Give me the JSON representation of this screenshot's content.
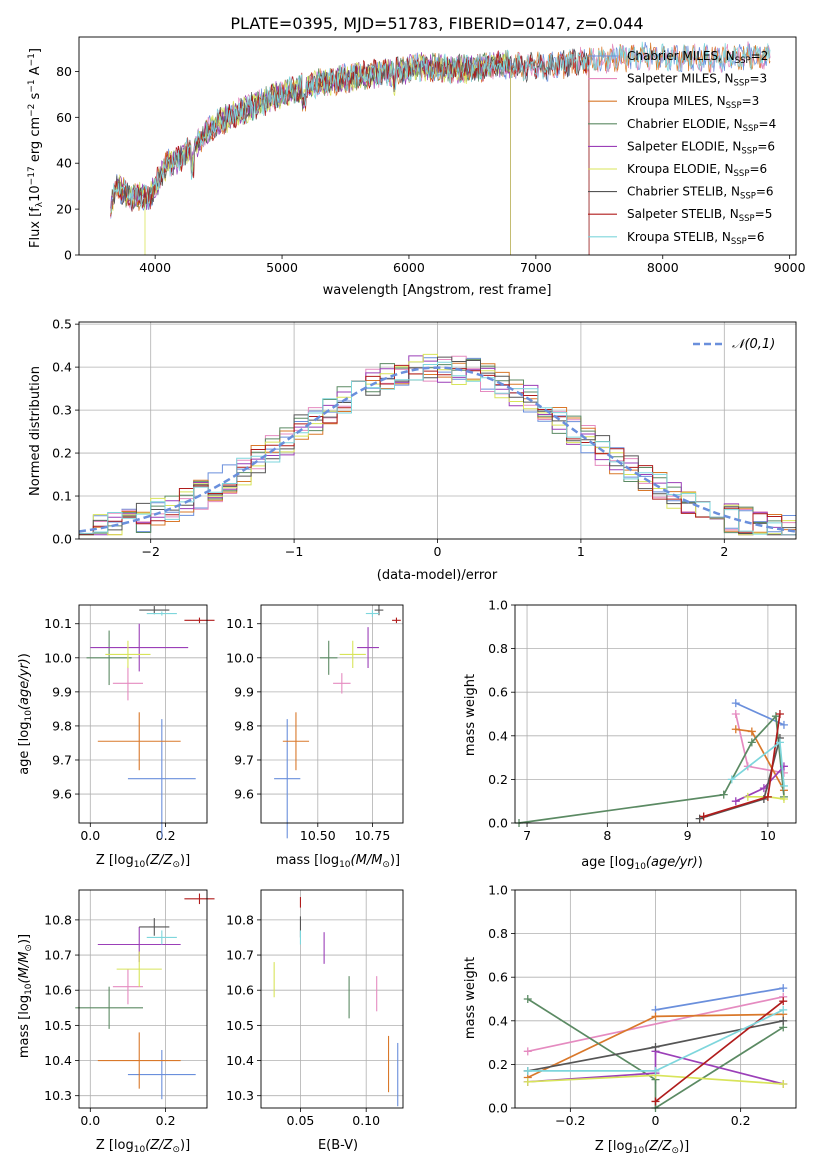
{
  "figure_title": "PLATE=0395, MJD=51783, FIBERID=0147, z=0.044",
  "colors": {
    "Chabrier MILES": "#6a8fdc",
    "Salpeter MILES": "#e58bc0",
    "Kroupa MILES": "#d9782a",
    "Chabrier ELODIE": "#5b8a63",
    "Salpeter ELODIE": "#9b3fb8",
    "Kroupa ELODIE": "#d8e45a",
    "Chabrier STELIB": "#555555",
    "Salpeter STELIB": "#b01c1c",
    "Kroupa STELIB": "#7ed6dc"
  },
  "chart_data": [
    {
      "id": "spectrum",
      "type": "line",
      "title": "PLATE=0395, MJD=51783, FIBERID=0147, z=0.044",
      "xlabel": "wavelength [Angstrom, rest frame]",
      "ylabel": "Flux [f",
      "ylabel_full": "Flux [f_λ 10^-17 erg cm^-2 s^-1 A^-1]",
      "xlim": [
        3400,
        9050
      ],
      "ylim": [
        0,
        95
      ],
      "xticks": [
        4000,
        5000,
        6000,
        7000,
        8000,
        9000
      ],
      "yticks": [
        0,
        20,
        40,
        60,
        80
      ],
      "legend_position": "right",
      "series": [
        {
          "name": "Chabrier MILES, N",
          "nssp": "=2",
          "color_key": "Chabrier MILES",
          "cut_at": 9000
        },
        {
          "name": "Salpeter MILES, N",
          "nssp": "=3",
          "color_key": "Salpeter MILES",
          "cut_at": 9000
        },
        {
          "name": "Kroupa MILES, N",
          "nssp": "=3",
          "color_key": "Kroupa MILES",
          "cut_at": 9000
        },
        {
          "name": "Chabrier ELODIE, N",
          "nssp": "=4",
          "color_key": "Chabrier ELODIE",
          "cut_at": 6800
        },
        {
          "name": "Salpeter ELODIE, N",
          "nssp": "=6",
          "color_key": "Salpeter ELODIE",
          "cut_at": 6800
        },
        {
          "name": "Kroupa ELODIE, N",
          "nssp": "=6",
          "color_key": "Kroupa ELODIE",
          "cut_at": 6800
        },
        {
          "name": "Chabrier STELIB, N",
          "nssp": "=6",
          "color_key": "Chabrier STELIB",
          "cut_at": 7420
        },
        {
          "name": "Salpeter STELIB, N",
          "nssp": "=5",
          "color_key": "Salpeter STELIB",
          "cut_at": 7420
        },
        {
          "name": "Kroupa STELIB, N",
          "nssp": "=6",
          "color_key": "Kroupa STELIB",
          "cut_at": 8850
        }
      ],
      "spectrum_shape": {
        "x": [
          3650,
          3700,
          3800,
          3900,
          3950,
          4000,
          4100,
          4200,
          4300,
          4400,
          4500,
          4700,
          4900,
          5100,
          5300,
          5500,
          5700,
          5900,
          6100,
          6300,
          6500,
          6700,
          6900,
          7100,
          7300,
          7500,
          7700,
          7900,
          8100,
          8300,
          8500,
          8700,
          8850
        ],
        "y": [
          20,
          30,
          25,
          26,
          24,
          30,
          40,
          42,
          47,
          53,
          58,
          63,
          68,
          72,
          75,
          77,
          79,
          80,
          82,
          81,
          81,
          83,
          82,
          82,
          84,
          85,
          86,
          87,
          86,
          86,
          86,
          87,
          86
        ]
      }
    },
    {
      "id": "residuals",
      "type": "histogram",
      "xlabel": "(data-model)/error",
      "ylabel": "Normed distribution",
      "xlim": [
        -2.5,
        2.5
      ],
      "ylim": [
        0,
        0.505
      ],
      "xticks": [
        -2,
        -1,
        0,
        1,
        2
      ],
      "yticks": [
        0.0,
        0.1,
        0.2,
        0.3,
        0.4,
        0.5
      ],
      "reference_curve": {
        "name": "𝒩(0,1)",
        "sigma": 1,
        "color": "#6a8fdc",
        "style": "dashed"
      },
      "bin_width": 0.1,
      "grid": true,
      "legend_position": "top-right"
    },
    {
      "id": "age_vs_Z",
      "type": "scatter",
      "xlabel": "Z [log",
      "ylabel": "age  [log",
      "xlim": [
        -0.03,
        0.31
      ],
      "ylim": [
        9.515,
        10.155
      ],
      "xticks": [
        0.0,
        0.2
      ],
      "yticks": [
        9.6,
        9.7,
        9.8,
        9.9,
        10.0,
        10.1
      ],
      "points": [
        {
          "key": "Chabrier MILES",
          "x": 0.19,
          "xerr": 0.09,
          "y": 9.645,
          "yerr": 0.175
        },
        {
          "key": "Kroupa MILES",
          "x": 0.13,
          "xerr": 0.11,
          "y": 9.755,
          "yerr": 0.085
        },
        {
          "key": "Salpeter MILES",
          "x": 0.1,
          "xerr": 0.04,
          "y": 9.925,
          "yerr": 0.05
        },
        {
          "key": "Chabrier ELODIE",
          "x": 0.05,
          "xerr": 0.06,
          "y": 10.0,
          "yerr": 0.08
        },
        {
          "key": "Salpeter ELODIE",
          "x": 0.13,
          "xerr": 0.13,
          "y": 10.03,
          "yerr": 0.07
        },
        {
          "key": "Kroupa ELODIE",
          "x": 0.1,
          "xerr": 0.06,
          "y": 10.01,
          "yerr": 0.04
        },
        {
          "key": "Chabrier STELIB",
          "x": 0.17,
          "xerr": 0.04,
          "y": 10.14,
          "yerr": 0.012
        },
        {
          "key": "Kroupa STELIB",
          "x": 0.19,
          "xerr": 0.04,
          "y": 10.13,
          "yerr": 0.006
        },
        {
          "key": "Salpeter STELIB",
          "x": 0.29,
          "xerr": 0.04,
          "y": 10.11,
          "yerr": 0.008
        }
      ]
    },
    {
      "id": "age_vs_mass",
      "type": "scatter",
      "xlabel": "mass [log",
      "xlim": [
        10.24,
        10.89
      ],
      "ylim": [
        9.515,
        10.155
      ],
      "xticks": [
        10.5,
        10.75
      ],
      "yticks": [
        9.6,
        9.7,
        9.8,
        9.9,
        10.0,
        10.1
      ],
      "points": [
        {
          "key": "Chabrier MILES",
          "x": 10.36,
          "xerr": 0.06,
          "y": 9.645,
          "yerr": 0.175
        },
        {
          "key": "Kroupa MILES",
          "x": 10.4,
          "xerr": 0.06,
          "y": 9.755,
          "yerr": 0.085
        },
        {
          "key": "Salpeter MILES",
          "x": 10.61,
          "xerr": 0.04,
          "y": 9.925,
          "yerr": 0.03
        },
        {
          "key": "Chabrier ELODIE",
          "x": 10.55,
          "xerr": 0.04,
          "y": 10.0,
          "yerr": 0.05
        },
        {
          "key": "Salpeter ELODIE",
          "x": 10.73,
          "xerr": 0.05,
          "y": 10.03,
          "yerr": 0.06
        },
        {
          "key": "Kroupa ELODIE",
          "x": 10.66,
          "xerr": 0.06,
          "y": 10.01,
          "yerr": 0.04
        },
        {
          "key": "Chabrier STELIB",
          "x": 10.78,
          "xerr": 0.02,
          "y": 10.14,
          "yerr": 0.015
        },
        {
          "key": "Kroupa STELIB",
          "x": 10.75,
          "xerr": 0.03,
          "y": 10.13,
          "yerr": 0.01
        },
        {
          "key": "Salpeter STELIB",
          "x": 10.86,
          "xerr": 0.02,
          "y": 10.11,
          "yerr": 0.008
        }
      ]
    },
    {
      "id": "massweight_vs_age",
      "type": "line",
      "xlabel": "age  [log",
      "ylabel": "mass weight",
      "xlim": [
        6.85,
        10.35
      ],
      "ylim": [
        0,
        1.0
      ],
      "xticks": [
        7,
        8,
        9,
        10
      ],
      "yticks": [
        0.0,
        0.2,
        0.4,
        0.6,
        0.8,
        1.0
      ],
      "series": [
        {
          "key": "Chabrier MILES",
          "x": [
            9.6,
            10.2
          ],
          "y": [
            0.55,
            0.45
          ]
        },
        {
          "key": "Salpeter MILES",
          "x": [
            9.6,
            9.75,
            10.2
          ],
          "y": [
            0.5,
            0.26,
            0.23
          ]
        },
        {
          "key": "Kroupa MILES",
          "x": [
            9.6,
            9.8,
            10.2
          ],
          "y": [
            0.43,
            0.42,
            0.15
          ]
        },
        {
          "key": "Chabrier ELODIE",
          "x": [
            6.9,
            9.45,
            9.8,
            10.1,
            10.2
          ],
          "y": [
            0.0,
            0.13,
            0.37,
            0.49,
            0.12
          ]
        },
        {
          "key": "Salpeter ELODIE",
          "x": [
            9.6,
            9.95,
            10.2
          ],
          "y": [
            0.1,
            0.16,
            0.26
          ]
        },
        {
          "key": "Kroupa ELODIE",
          "x": [
            9.75,
            10.0,
            10.2
          ],
          "y": [
            0.12,
            0.12,
            0.11
          ]
        },
        {
          "key": "Chabrier STELIB",
          "x": [
            9.15,
            9.95,
            10.15
          ],
          "y": [
            0.02,
            0.11,
            0.39
          ]
        },
        {
          "key": "Salpeter STELIB",
          "x": [
            9.2,
            10.0,
            10.15
          ],
          "y": [
            0.03,
            0.12,
            0.5
          ]
        },
        {
          "key": "Kroupa STELIB",
          "x": [
            9.55,
            10.15,
            10.2
          ],
          "y": [
            0.2,
            0.37,
            0.17
          ]
        }
      ]
    },
    {
      "id": "mass_vs_Z",
      "type": "scatter",
      "xlabel": "Z [log",
      "ylabel": "mass [log",
      "xlim": [
        -0.03,
        0.31
      ],
      "ylim": [
        10.265,
        10.885
      ],
      "xticks": [
        0.0,
        0.2
      ],
      "yticks": [
        10.3,
        10.4,
        10.5,
        10.6,
        10.7,
        10.8
      ],
      "points": [
        {
          "key": "Chabrier MILES",
          "x": 0.19,
          "xerr": 0.09,
          "y": 10.36,
          "yerr": 0.07
        },
        {
          "key": "Kroupa MILES",
          "x": 0.13,
          "xerr": 0.11,
          "y": 10.4,
          "yerr": 0.08
        },
        {
          "key": "Salpeter MILES",
          "x": 0.1,
          "xerr": 0.04,
          "y": 10.61,
          "yerr": 0.05
        },
        {
          "key": "Chabrier ELODIE",
          "x": 0.05,
          "xerr": 0.09,
          "y": 10.55,
          "yerr": 0.06
        },
        {
          "key": "Salpeter ELODIE",
          "x": 0.13,
          "xerr": 0.11,
          "y": 10.73,
          "yerr": 0.05
        },
        {
          "key": "Kroupa ELODIE",
          "x": 0.13,
          "xerr": 0.06,
          "y": 10.66,
          "yerr": 0.05
        },
        {
          "key": "Chabrier STELIB",
          "x": 0.17,
          "xerr": 0.04,
          "y": 10.78,
          "yerr": 0.025
        },
        {
          "key": "Kroupa STELIB",
          "x": 0.19,
          "xerr": 0.04,
          "y": 10.75,
          "yerr": 0.02
        },
        {
          "key": "Salpeter STELIB",
          "x": 0.29,
          "xerr": 0.04,
          "y": 10.86,
          "yerr": 0.015
        }
      ]
    },
    {
      "id": "mass_vs_ebv",
      "type": "scatter",
      "xlabel": "E(B-V)",
      "xlim": [
        0.02,
        0.128
      ],
      "ylim": [
        10.265,
        10.885
      ],
      "xticks": [
        0.05,
        0.1
      ],
      "yticks": [
        10.3,
        10.4,
        10.5,
        10.6,
        10.7,
        10.8
      ],
      "points": [
        {
          "key": "Chabrier MILES",
          "x": 0.124,
          "xerr": 0.0,
          "y": 10.36,
          "yerr": 0.09
        },
        {
          "key": "Kroupa MILES",
          "x": 0.117,
          "xerr": 0.0,
          "y": 10.39,
          "yerr": 0.08
        },
        {
          "key": "Salpeter MILES",
          "x": 0.108,
          "xerr": 0.0,
          "y": 10.59,
          "yerr": 0.05
        },
        {
          "key": "Chabrier ELODIE",
          "x": 0.087,
          "xerr": 0.0,
          "y": 10.58,
          "yerr": 0.06
        },
        {
          "key": "Salpeter ELODIE",
          "x": 0.068,
          "xerr": 0.0,
          "y": 10.72,
          "yerr": 0.045
        },
        {
          "key": "Kroupa ELODIE",
          "x": 0.03,
          "xerr": 0.0,
          "y": 10.63,
          "yerr": 0.05
        },
        {
          "key": "Chabrier STELIB",
          "x": 0.05,
          "xerr": 0.0,
          "y": 10.78,
          "yerr": 0.03
        },
        {
          "key": "Kroupa STELIB",
          "x": 0.05,
          "xerr": 0.0,
          "y": 10.75,
          "yerr": 0.02
        },
        {
          "key": "Salpeter STELIB",
          "x": 0.05,
          "xerr": 0.0,
          "y": 10.85,
          "yerr": 0.015
        }
      ]
    },
    {
      "id": "massweight_vs_Z",
      "type": "line",
      "xlabel": "Z [log",
      "ylabel": "mass weight",
      "xlim": [
        -0.33,
        0.33
      ],
      "ylim": [
        0,
        1.0
      ],
      "xticks": [
        -0.2,
        0.0,
        0.2
      ],
      "yticks": [
        0.0,
        0.2,
        0.4,
        0.6,
        0.8,
        1.0
      ],
      "series": [
        {
          "key": "Chabrier MILES",
          "x": [
            0.0,
            0.3
          ],
          "y": [
            0.45,
            0.55
          ]
        },
        {
          "key": "Salpeter MILES",
          "x": [
            -0.3,
            0.3
          ],
          "y": [
            0.26,
            0.51
          ]
        },
        {
          "key": "Kroupa MILES",
          "x": [
            -0.3,
            0.0,
            0.3
          ],
          "y": [
            0.14,
            0.42,
            0.43
          ]
        },
        {
          "key": "Chabrier ELODIE",
          "x": [
            -0.3,
            0.0,
            0.0,
            0.3
          ],
          "y": [
            0.5,
            0.13,
            0.0,
            0.37
          ]
        },
        {
          "key": "Salpeter ELODIE",
          "x": [
            -0.3,
            0.0,
            0.0,
            0.3
          ],
          "y": [
            0.12,
            0.16,
            0.26,
            0.11
          ]
        },
        {
          "key": "Kroupa ELODIE",
          "x": [
            -0.3,
            0.0,
            0.3
          ],
          "y": [
            0.12,
            0.15,
            0.11
          ]
        },
        {
          "key": "Chabrier STELIB",
          "x": [
            -0.3,
            0.0,
            0.3
          ],
          "y": [
            0.17,
            0.28,
            0.4
          ]
        },
        {
          "key": "Salpeter STELIB",
          "x": [
            0.0,
            0.3
          ],
          "y": [
            0.03,
            0.49
          ]
        },
        {
          "key": "Kroupa STELIB",
          "x": [
            -0.3,
            0.0,
            0.3
          ],
          "y": [
            0.17,
            0.17,
            0.45
          ]
        }
      ]
    }
  ],
  "labels": {
    "ssp_sub": "SSP",
    "lambda_sub": "λ",
    "flux_mid": "10",
    "flux_exp": "−17",
    "flux_rest": " erg cm",
    "flux_exp2": "−2",
    "flux_rest2": " s",
    "flux_exp3": "−1",
    "flux_rest3": " A",
    "flux_exp4": "−1",
    "flux_close": "]",
    "log_sub": "10",
    "zsun": "(Z/Z",
    "msun": "(M/M",
    "sun_sub": "⊙",
    "close_paren": ")]",
    "age_yr": "(age/yr)",
    "age_close": ")"
  }
}
